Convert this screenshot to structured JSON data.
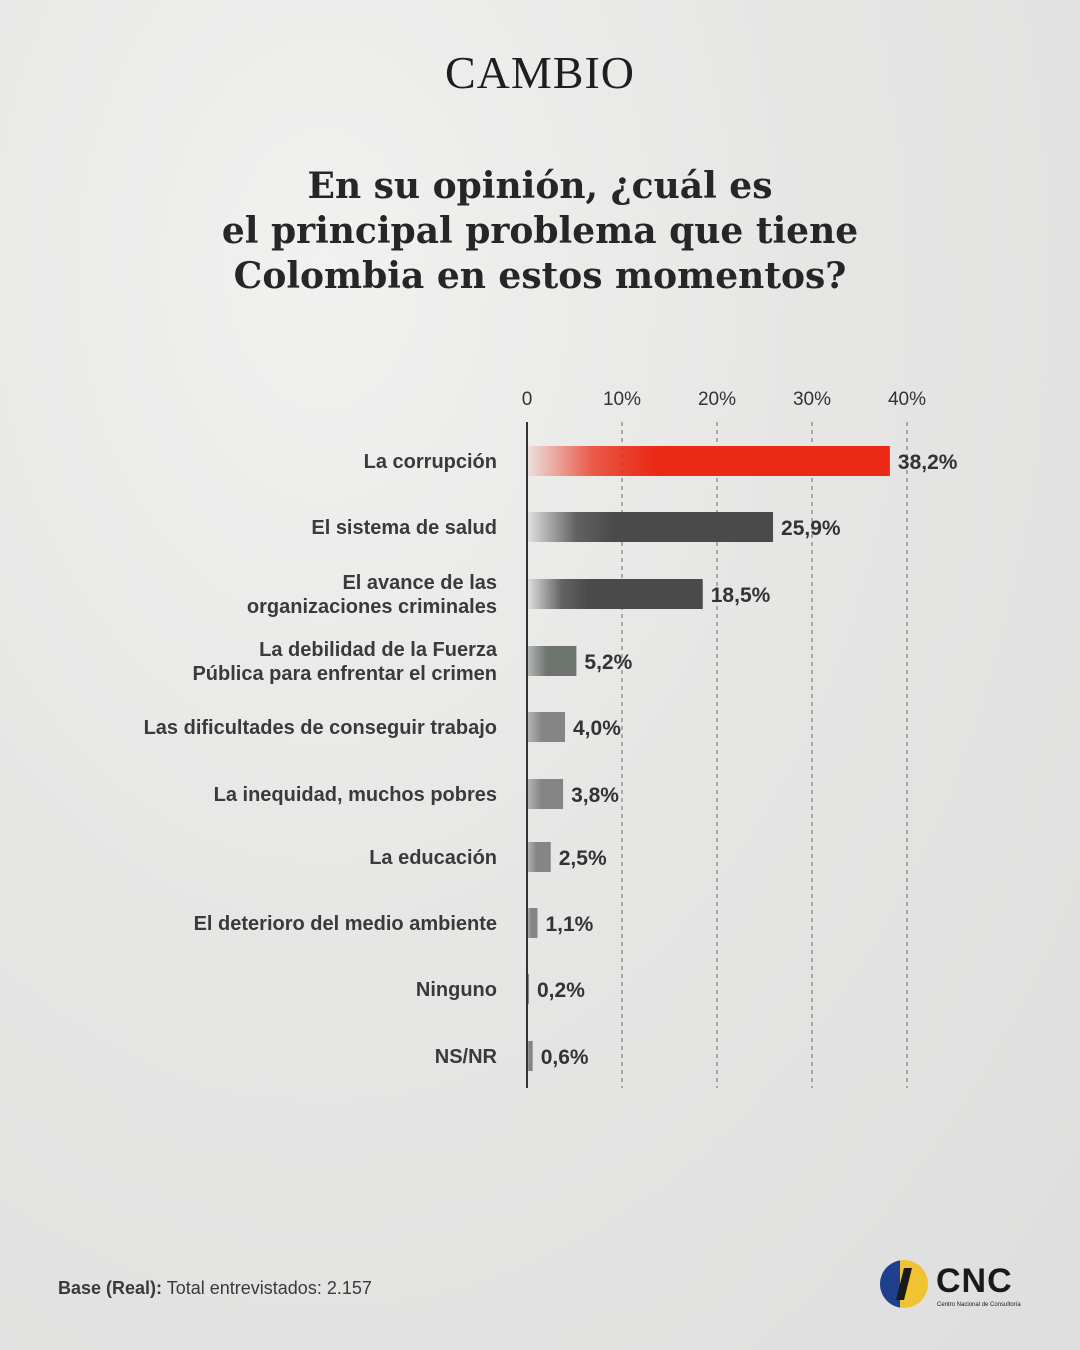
{
  "header": {
    "brand": "CAMBIO"
  },
  "title_lines": [
    "En su opinión, ¿cuál es",
    "el principal problema que tiene",
    "Colombia en estos momentos?"
  ],
  "colors": {
    "highlight": "#ea2a14",
    "dark": "#4a4a4a",
    "mid": "#777777",
    "light": "#8a8a8a",
    "axis": "#333333"
  },
  "chart_data": {
    "type": "bar",
    "orientation": "horizontal",
    "categories": [
      [
        "La corrupción"
      ],
      [
        "El sistema de salud"
      ],
      [
        "El avance de las",
        "organizaciones criminales"
      ],
      [
        "La debilidad de la Fuerza",
        "Pública para enfrentar el crimen"
      ],
      [
        "Las dificultades de conseguir trabajo"
      ],
      [
        "La inequidad, muchos pobres"
      ],
      [
        "La educación"
      ],
      [
        "El deterioro del medio ambiente"
      ],
      [
        "Ninguno"
      ],
      [
        "NS/NR"
      ]
    ],
    "values": [
      38.2,
      25.9,
      18.5,
      5.2,
      4.0,
      3.8,
      2.5,
      1.1,
      0.2,
      0.6
    ],
    "value_labels": [
      "38,2%",
      "25,9%",
      "18,5%",
      "5,2%",
      "4,0%",
      "3,8%",
      "2,5%",
      "1,1%",
      "0,2%",
      "0,6%"
    ],
    "highlight_index": 0,
    "xlim": [
      0,
      40
    ],
    "x_ticks": [
      0,
      10,
      20,
      30,
      40
    ],
    "x_tick_labels": [
      "0",
      "10%",
      "20%",
      "30%",
      "40%"
    ],
    "grid": true
  },
  "footer": {
    "base_label": "Base (Real):",
    "base_text": "Total entrevistados: 2.157"
  },
  "source_logo": {
    "name": "CNC",
    "subtitle": "Centro Nacional de Consultoría"
  }
}
